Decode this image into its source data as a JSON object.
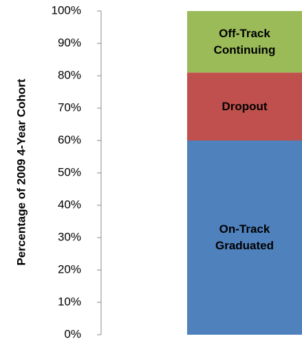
{
  "chart_data": {
    "type": "stacked-bar",
    "y_label": "Percentage of 2009 4-Year Cohort",
    "categories": [
      null
    ],
    "series": [
      {
        "name": "On-Track Graduated",
        "color": "#4f81bd",
        "values": [
          60
        ]
      },
      {
        "name": "Dropout",
        "color": "#c0504d",
        "values": [
          21
        ]
      },
      {
        "name": "Off-Track Continuing",
        "color": "#9bbb59",
        "values": [
          19
        ]
      }
    ],
    "ylim": [
      0,
      100
    ],
    "yticks": [
      {
        "value": 0,
        "label": "0%"
      },
      {
        "value": 10,
        "label": "10%"
      },
      {
        "value": 20,
        "label": "20%"
      },
      {
        "value": 30,
        "label": "30%"
      },
      {
        "value": 40,
        "label": "40%"
      },
      {
        "value": 50,
        "label": "50%"
      },
      {
        "value": 60,
        "label": "60%"
      },
      {
        "value": 70,
        "label": "70%"
      },
      {
        "value": 80,
        "label": "80%"
      },
      {
        "value": 90,
        "label": "90%"
      },
      {
        "value": 100,
        "label": "100%"
      }
    ]
  }
}
